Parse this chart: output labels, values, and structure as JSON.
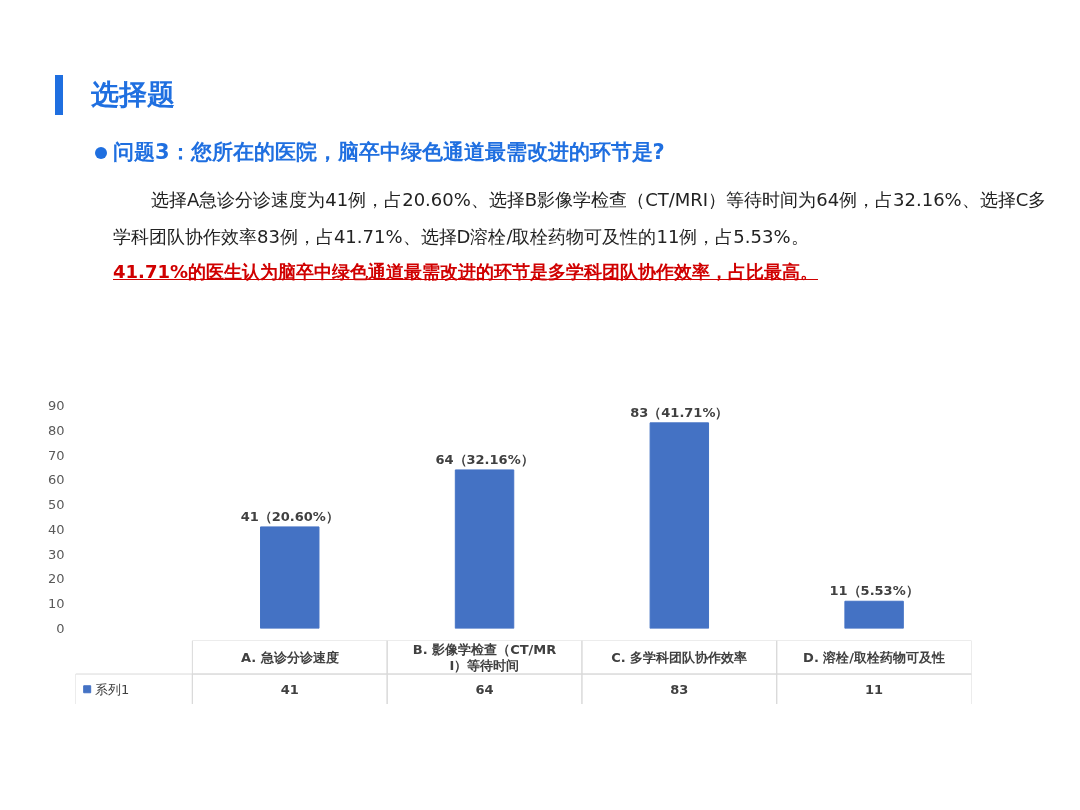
{
  "chart_data": {
    "type": "bar",
    "title": "选择题",
    "subtitle": "问题3：您所在的医院，脑卒中绿色通道最需改进的环节是?",
    "annotations": [
      "选择A急诊分诊速度为41例，占20.60%、选择B影像学检查（CT/MRI）等待时间为64例，占32.16%、选择C多学科团队协作效率83例，占41.71%、选择D溶栓/取栓药物可及性的11例，占5.53%。",
      "41.71%的医生认为脑卒中绿色通道最需改进的环节是多学科团队协作效率，占比最高。",
      {
        "text": "41（20.60%）",
        "x": "A. 急诊分诊速度",
        "y": 41
      },
      {
        "text": "64（32.16%）",
        "x": "B. 影像学检查（CT/MRI）等待时间",
        "y": 64
      },
      {
        "text": "83（41.71%）",
        "x": "C. 多学科团队协作效率",
        "y": 83
      },
      {
        "text": "11（5.53%）",
        "x": "D. 溶栓/取栓药物可及性",
        "y": 11
      }
    ],
    "categories": [
      "A. 急诊分诊速度",
      "B. 影像学检查（CT/MRI）等待时间",
      "C. 多学科团队协作效率",
      "D. 溶栓/取栓药物可及性"
    ],
    "series": [
      {
        "name": "系列1",
        "color": "#4472c4",
        "values": [
          41,
          64,
          83,
          11
        ]
      }
    ],
    "ylim": [
      0,
      90
    ],
    "yticks": [
      0,
      10,
      20,
      30,
      40,
      50,
      60,
      70,
      80,
      90
    ],
    "grid": false,
    "legend": "bottom",
    "data_labels": true
  }
}
